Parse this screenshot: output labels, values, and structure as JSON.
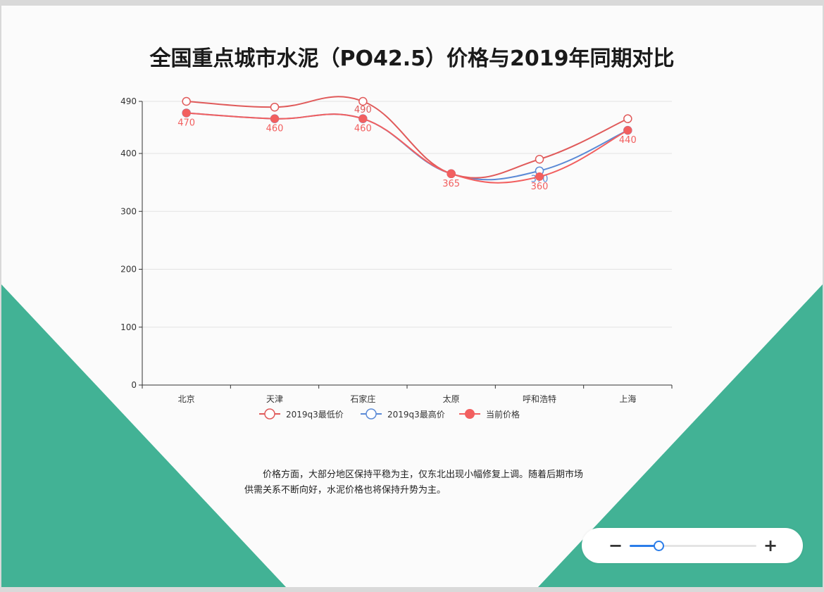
{
  "page": {
    "description": "价格方面，大部分地区保持平稳为主，仅东北出现小幅修复上调。随着后期市场供需关系不断向好，水泥价格也将保持升势为主。"
  },
  "zoom": {
    "minus_label": "−",
    "plus_label": "+",
    "level": 0.23
  },
  "colors": {
    "accent_green": "#42b295",
    "series_low": "#e05a5a",
    "series_high": "#5b8ad6",
    "series_current": "#f25f5f"
  },
  "chart_data": {
    "type": "line",
    "title": "全国重点城市水泥（PO42.5）价格与2019年同期对比",
    "categories": [
      "北京",
      "天津",
      "石家庄",
      "太原",
      "呼和浩特",
      "上海"
    ],
    "ylim": [
      0,
      490
    ],
    "yticks": [
      0,
      100,
      200,
      300,
      400,
      490
    ],
    "grid": true,
    "legend": "bottom",
    "smooth": true,
    "series": [
      {
        "name": "2019q3最低价",
        "values": [
          490,
          480,
          490,
          365,
          390,
          460
        ],
        "color": "#e05a5a",
        "marker": "hollow",
        "labels": [
          "",
          "",
          "490",
          "",
          "",
          ""
        ]
      },
      {
        "name": "2019q3最高价",
        "values": [
          470,
          460,
          460,
          365,
          370,
          440
        ],
        "color": "#5b8ad6",
        "marker": "hollow",
        "labels": [
          "",
          "",
          "",
          "",
          "370",
          ""
        ]
      },
      {
        "name": "当前价格",
        "values": [
          470,
          460,
          460,
          365,
          360,
          440
        ],
        "color": "#f25f5f",
        "marker": "filled",
        "labels": [
          "470",
          "460",
          "460",
          "365",
          "360",
          "440"
        ]
      }
    ]
  }
}
